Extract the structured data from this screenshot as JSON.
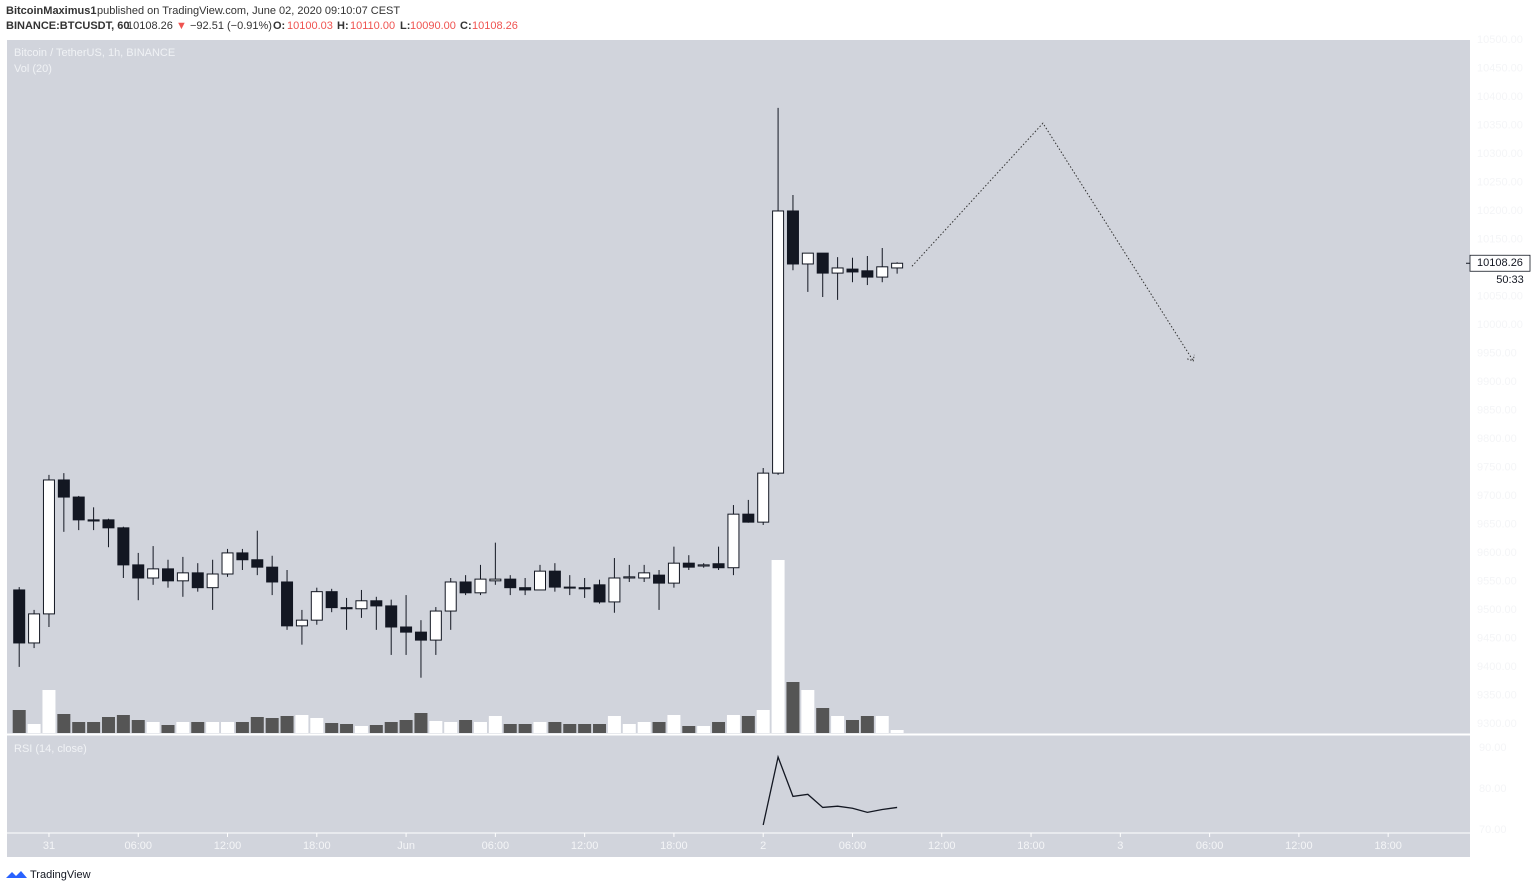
{
  "header": {
    "publisher": "BitcoinMaximus1",
    "published": "published on TradingView.com, June 02, 2020 09:10:07 CEST",
    "symbol": "BINANCE:BTCUSDT, 60",
    "last": "10108.26",
    "arrow": "▼",
    "change": "−92.51 (−0.91%)",
    "o_label": "O:",
    "o_value": "10100.03",
    "h_label": "H:",
    "h_value": "10110.00",
    "l_label": "L:",
    "l_value": "10090.00",
    "c_label": "C:",
    "c_value": "10108.26"
  },
  "footer": {
    "brand": "TradingView"
  },
  "chart_data": {
    "type": "candlestick",
    "title": "Bitcoin / TetherUS, 1h, BINANCE",
    "volume_label": "Vol (20)",
    "rsi_label": "RSI (14, close)",
    "countdown": "50:33",
    "x": [
      -2,
      -1,
      0,
      1,
      2,
      3,
      4,
      5,
      6,
      7,
      8,
      9,
      10,
      11,
      12,
      13,
      14,
      15,
      16,
      17,
      18,
      19,
      20,
      21,
      22,
      23,
      24,
      25,
      26,
      27,
      28,
      29,
      30,
      31,
      32,
      33,
      34,
      35,
      36,
      37,
      38,
      39,
      40,
      41,
      42,
      43,
      44,
      45,
      46,
      47,
      48,
      49,
      50,
      51,
      52,
      53,
      54,
      55,
      56,
      57
    ],
    "open": [
      9535,
      9442,
      9493,
      9728,
      9698,
      9658,
      9658,
      9644,
      9579,
      9556,
      9572,
      9551,
      9565,
      9539,
      9563,
      9600,
      9588,
      9575,
      9549,
      9472,
      9482,
      9532,
      9504,
      9502,
      9516,
      9507,
      9470,
      9461,
      9447,
      9498,
      9549,
      9530,
      9551,
      9554,
      9539,
      9535,
      9568,
      9540,
      9539,
      9544,
      9514,
      9556,
      9556,
      9561,
      9547,
      9582,
      9577,
      9581,
      9574,
      9668,
      9654,
      9740,
      10200,
      10107,
      10126,
      10091,
      10098,
      10095,
      10084,
      10100.03
    ],
    "high": [
      9540,
      9500,
      9737,
      9740,
      9700,
      9680,
      9660,
      9646,
      9600,
      9612,
      9588,
      9593,
      9582,
      9588,
      9607,
      9607,
      9639,
      9595,
      9570,
      9500,
      9539,
      9537,
      9521,
      9535,
      9523,
      9518,
      9526,
      9482,
      9505,
      9556,
      9561,
      9579,
      9618,
      9561,
      9556,
      9579,
      9582,
      9561,
      9556,
      9553,
      9591,
      9579,
      9579,
      9570,
      9611,
      9596,
      9582,
      9611,
      9684,
      9693,
      9749,
      10381,
      10228,
      10126,
      10126,
      10119,
      10118,
      10121,
      10135,
      10110
    ],
    "low": [
      9400,
      9433,
      9470,
      9637,
      9640,
      9640,
      9610,
      9556,
      9517,
      9544,
      9539,
      9523,
      9532,
      9500,
      9558,
      9570,
      9561,
      9526,
      9465,
      9439,
      9474,
      9496,
      9465,
      9486,
      9465,
      9421,
      9421,
      9381,
      9421,
      9465,
      9526,
      9526,
      9544,
      9526,
      9526,
      9535,
      9532,
      9526,
      9521,
      9511,
      9495,
      9549,
      9549,
      9500,
      9539,
      9570,
      9574,
      9570,
      9561,
      9653,
      9649,
      9737,
      10096,
      10058,
      10049,
      10044,
      10075,
      10070,
      10075,
      10090
    ],
    "close": [
      9442,
      9493,
      9728,
      9698,
      9658,
      9656,
      9644,
      9579,
      9556,
      9572,
      9551,
      9565,
      9539,
      9563,
      9600,
      9588,
      9575,
      9549,
      9472,
      9482,
      9532,
      9504,
      9502,
      9516,
      9507,
      9470,
      9461,
      9447,
      9498,
      9549,
      9530,
      9554,
      9554,
      9539,
      9535,
      9568,
      9540,
      9539,
      9537,
      9514,
      9556,
      9558,
      9565,
      9547,
      9582,
      9575,
      9579,
      9574,
      9668,
      9654,
      9740,
      10200,
      10107,
      10126,
      10091,
      10100,
      10093,
      10084,
      10102,
      10108.26
    ],
    "volume": [
      23,
      9,
      43,
      19,
      11,
      11,
      16,
      18,
      13,
      11,
      8,
      11,
      11,
      11,
      11,
      11,
      16,
      15,
      17,
      18,
      15,
      10,
      9,
      7,
      8,
      11,
      13,
      20,
      12,
      11,
      13,
      11,
      17,
      9,
      9,
      11,
      11,
      9,
      9,
      9,
      17,
      9,
      11,
      11,
      18,
      7,
      7,
      11,
      18,
      17,
      23,
      173,
      51,
      43,
      25,
      17,
      13,
      17,
      17,
      3
    ],
    "rsi": [
      null,
      null,
      null,
      null,
      null,
      null,
      null,
      null,
      null,
      null,
      null,
      null,
      null,
      null,
      null,
      null,
      null,
      null,
      null,
      null,
      null,
      null,
      null,
      null,
      null,
      null,
      null,
      null,
      null,
      null,
      null,
      null,
      null,
      null,
      null,
      null,
      null,
      null,
      null,
      null,
      null,
      null,
      null,
      null,
      null,
      null,
      null,
      null,
      null,
      null,
      71.2,
      87.8,
      78.2,
      78.7,
      75.5,
      75.8,
      75.3,
      74.3,
      75,
      75.5
    ],
    "projection": {
      "x": [
        58,
        66.8,
        76.9
      ],
      "values": [
        10103,
        10354,
        9937
      ]
    },
    "up_color": "#ffffff",
    "down_color": "#131722",
    "up_volume_color": "#ffffff",
    "down_volume_color": "#555555",
    "rsi_color": "#131722",
    "background": "#d1d4dc",
    "xlim": [
      -2.82,
      95.5
    ],
    "xticks": [
      {
        "value": 0,
        "label": "31"
      },
      {
        "value": 6,
        "label": "06:00"
      },
      {
        "value": 12,
        "label": "12:00"
      },
      {
        "value": 18,
        "label": "18:00"
      },
      {
        "value": 24,
        "label": "Jun"
      },
      {
        "value": 30,
        "label": "06:00"
      },
      {
        "value": 36,
        "label": "12:00"
      },
      {
        "value": 42,
        "label": "18:00"
      },
      {
        "value": 48,
        "label": "2"
      },
      {
        "value": 54,
        "label": "06:00"
      },
      {
        "value": 60,
        "label": "12:00"
      },
      {
        "value": 66,
        "label": "18:00"
      },
      {
        "value": 72,
        "label": "3"
      },
      {
        "value": 78,
        "label": "06:00"
      },
      {
        "value": 84,
        "label": "12:00"
      },
      {
        "value": 90,
        "label": "18:00"
      }
    ],
    "ylim": [
      9284,
      10500
    ],
    "yticks": [
      {
        "value": 9300,
        "label": "9300.00"
      },
      {
        "value": 9350,
        "label": "9350.00"
      },
      {
        "value": 9400,
        "label": "9400.00"
      },
      {
        "value": 9450,
        "label": "9450.00"
      },
      {
        "value": 9500,
        "label": "9500.00"
      },
      {
        "value": 9550,
        "label": "9550.00"
      },
      {
        "value": 9600,
        "label": "9600.00"
      },
      {
        "value": 9650,
        "label": "9650.00"
      },
      {
        "value": 9700,
        "label": "9700.00"
      },
      {
        "value": 9750,
        "label": "9750.00"
      },
      {
        "value": 9800,
        "label": "9800.00"
      },
      {
        "value": 9850,
        "label": "9850.00"
      },
      {
        "value": 9900,
        "label": "9900.00"
      },
      {
        "value": 9950,
        "label": "9950.00"
      },
      {
        "value": 10000,
        "label": "10000.00"
      },
      {
        "value": 10050,
        "label": "10050.00"
      },
      {
        "value": 10100,
        "label": "10100.00"
      },
      {
        "value": 10150,
        "label": "10150.00"
      },
      {
        "value": 10200,
        "label": "10200.00"
      },
      {
        "value": 10250,
        "label": "10250.00"
      },
      {
        "value": 10300,
        "label": "10300.00"
      },
      {
        "value": 10350,
        "label": "10350.00"
      },
      {
        "value": 10400,
        "label": "10400.00"
      },
      {
        "value": 10450,
        "label": "10450.00"
      },
      {
        "value": 10500,
        "label": "10500.00"
      }
    ],
    "vlim": [
      0,
      180
    ],
    "rsi_ylim": [
      69.5,
      92.7
    ],
    "rsi_yticks": [
      {
        "value": 70,
        "label": "70.00"
      },
      {
        "value": 80,
        "label": "80.00"
      },
      {
        "value": 90,
        "label": "90.00"
      }
    ]
  }
}
